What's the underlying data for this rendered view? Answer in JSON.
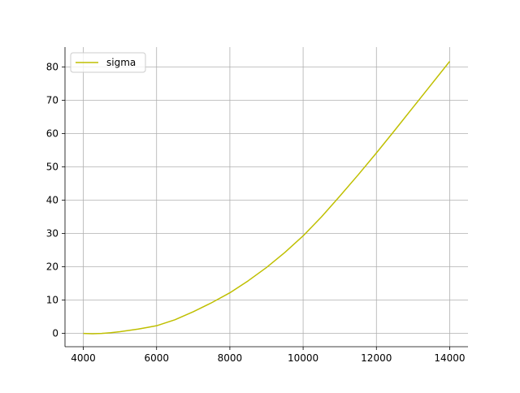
{
  "chart_data": {
    "type": "line",
    "title": "",
    "xlabel": "",
    "ylabel": "",
    "xlim": [
      3500,
      14500
    ],
    "ylim": [
      -4,
      86
    ],
    "x_ticks": [
      4000,
      6000,
      8000,
      10000,
      12000,
      14000
    ],
    "y_ticks": [
      0,
      10,
      20,
      30,
      40,
      50,
      60,
      70,
      80
    ],
    "grid": true,
    "legend_position": "top-left",
    "series": [
      {
        "name": "sigma",
        "color": "#bfbf00",
        "x": [
          4000,
          4250,
          4500,
          4750,
          5000,
          5250,
          5500,
          5750,
          6000,
          6500,
          7000,
          7500,
          8000,
          8500,
          9000,
          9500,
          10000,
          10500,
          11000,
          11500,
          12000,
          12500,
          13000,
          13500,
          14000
        ],
        "y": [
          0.0,
          -0.1,
          0.0,
          0.2,
          0.5,
          0.9,
          1.3,
          1.8,
          2.3,
          4.1,
          6.5,
          9.2,
          12.2,
          15.8,
          19.8,
          24.3,
          29.3,
          35.0,
          41.2,
          47.6,
          54.2,
          61.0,
          67.9,
          74.8,
          81.7
        ]
      }
    ]
  }
}
